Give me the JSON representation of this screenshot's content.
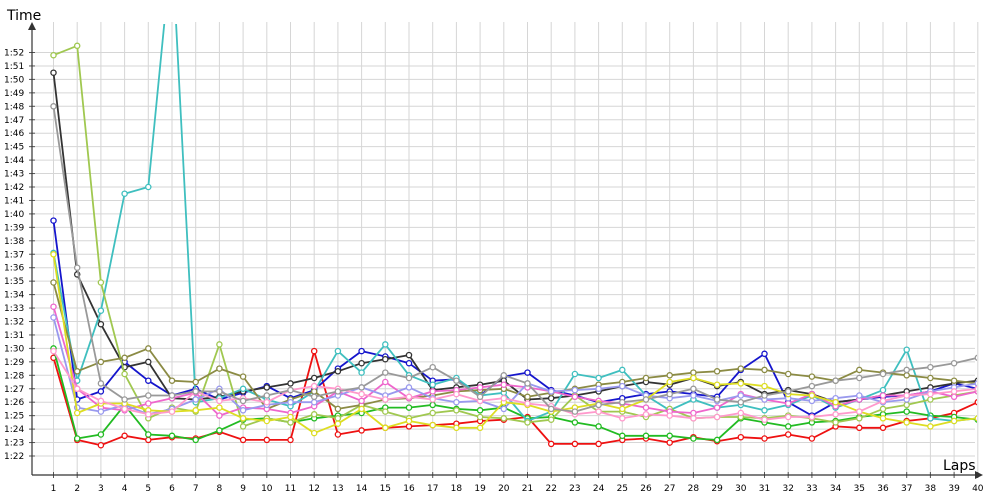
{
  "chart_data": {
    "type": "line",
    "xlabel": "Laps",
    "ylabel": "Time",
    "x": [
      1,
      2,
      3,
      4,
      5,
      6,
      7,
      8,
      9,
      10,
      11,
      12,
      13,
      14,
      15,
      16,
      17,
      18,
      19,
      20,
      21,
      22,
      23,
      24,
      25,
      26,
      27,
      28,
      29,
      30,
      31,
      32,
      33,
      34,
      35,
      36,
      37,
      38,
      39,
      40
    ],
    "x_tick_labels": [
      "1",
      "2",
      "3",
      "4",
      "5",
      "6",
      "7",
      "8",
      "9",
      "10",
      "11",
      "12",
      "13",
      "14",
      "15",
      "16",
      "17",
      "18",
      "19",
      "20",
      "21",
      "22",
      "23",
      "24",
      "25",
      "26",
      "27",
      "28",
      "29",
      "30",
      "31",
      "32",
      "33",
      "34",
      "35",
      "36",
      "37",
      "38",
      "39",
      "40"
    ],
    "y_tick_labels": [
      "1:22",
      "1:23",
      "1:24",
      "1:25",
      "1:26",
      "1:27",
      "1:28",
      "1:29",
      "1:30",
      "1:31",
      "1:32",
      "1:33",
      "1:34",
      "1:35",
      "1:36",
      "1:37",
      "1:38",
      "1:39",
      "1:40",
      "1:41",
      "1:42",
      "1:43",
      "1:44",
      "1:45",
      "1:46",
      "1:47",
      "1:48",
      "1:49",
      "1:50",
      "1:51",
      "1:52"
    ],
    "y_unit": "seconds",
    "ylim": [
      81.5,
      112.8
    ],
    "xlim": [
      0.2,
      40.4
    ],
    "grid": true,
    "series": [
      {
        "color": "#ee1111",
        "values": [
          89.3,
          83.2,
          82.8,
          83.5,
          83.2,
          83.4,
          83.3,
          83.8,
          83.2,
          83.2,
          83.2,
          89.8,
          83.6,
          83.9,
          84.1,
          84.2,
          84.3,
          84.4,
          84.6,
          84.7,
          84.9,
          82.9,
          82.9,
          82.9,
          83.2,
          83.3,
          83.0,
          83.4,
          83.1,
          83.4,
          83.3,
          83.6,
          83.3,
          84.2,
          84.1,
          84.1,
          84.6,
          84.8,
          85.2,
          86.0
        ]
      },
      {
        "color": "#22bb22",
        "values": [
          90.0,
          83.3,
          83.6,
          85.8,
          83.6,
          83.5,
          83.2,
          83.9,
          84.7,
          84.8,
          84.5,
          84.8,
          85.0,
          85.2,
          85.6,
          85.6,
          85.8,
          85.5,
          85.4,
          85.6,
          84.8,
          84.9,
          84.5,
          84.2,
          83.5,
          83.5,
          83.5,
          83.3,
          83.2,
          84.8,
          84.5,
          84.2,
          84.5,
          84.6,
          84.9,
          85.1,
          85.3,
          85.0,
          84.9,
          84.7
        ]
      },
      {
        "color": "#1515cc",
        "values": [
          99.5,
          86.2,
          86.8,
          89.0,
          87.6,
          86.5,
          87.0,
          86.2,
          86.7,
          87.2,
          86.3,
          86.9,
          88.5,
          89.8,
          89.4,
          88.9,
          87.6,
          87.7,
          86.5,
          87.9,
          88.2,
          86.9,
          86.5,
          86.0,
          86.3,
          86.6,
          86.8,
          86.6,
          86.4,
          88.4,
          89.6,
          86.0,
          85.0,
          86.0,
          86.2,
          86.4,
          86.5,
          86.8,
          87.4,
          87.0
        ]
      },
      {
        "color": "#333333",
        "values": [
          110.5,
          95.5,
          91.8,
          88.6,
          89.0,
          86.3,
          86.2,
          86.4,
          86.8,
          87.1,
          87.4,
          87.8,
          88.3,
          88.9,
          89.2,
          89.5,
          86.9,
          87.1,
          87.3,
          87.6,
          86.2,
          86.3,
          86.5,
          86.8,
          87.2,
          87.5,
          87.3,
          87.8,
          87.2,
          87.5,
          86.6,
          86.9,
          86.6,
          86.0,
          86.2,
          86.5,
          86.8,
          87.1,
          87.4,
          87.6
        ]
      },
      {
        "color": "#3fbfbf",
        "values": [
          97.1,
          87.6,
          92.8,
          101.5,
          102.0,
          120.0,
          86.0,
          86.3,
          87.0,
          86.2,
          85.7,
          86.8,
          89.8,
          88.2,
          90.3,
          88.0,
          87.3,
          87.8,
          86.5,
          86.7,
          84.6,
          85.3,
          88.1,
          87.8,
          88.4,
          86.5,
          85.4,
          86.2,
          85.6,
          85.8,
          85.4,
          85.8,
          86.5,
          85.6,
          86.2,
          86.9,
          89.9,
          84.8,
          84.6,
          84.8
        ]
      },
      {
        "color": "#a0c850",
        "values": [
          111.8,
          112.5,
          94.9,
          88.1,
          84.8,
          85.6,
          85.3,
          90.3,
          84.2,
          84.8,
          84.5,
          85.1,
          84.8,
          85.8,
          85.3,
          84.8,
          85.2,
          85.4,
          84.9,
          84.8,
          84.5,
          84.7,
          86.5,
          85.3,
          85.3,
          84.9,
          85.5,
          84.8,
          84.9,
          84.9,
          84.8,
          85.0,
          84.8,
          84.5,
          84.8,
          85.5,
          85.8,
          86.2,
          86.5,
          86.8
        ]
      },
      {
        "color": "#8b8b44",
        "values": [
          94.9,
          88.3,
          89.0,
          89.3,
          90.0,
          87.6,
          87.5,
          88.5,
          87.9,
          85.5,
          86.2,
          86.8,
          85.5,
          85.8,
          86.2,
          86.3,
          86.5,
          86.8,
          86.9,
          87.0,
          86.4,
          86.7,
          87.0,
          87.3,
          87.5,
          87.8,
          88.0,
          88.2,
          88.3,
          88.5,
          88.4,
          88.1,
          87.9,
          87.6,
          88.4,
          88.2,
          88.0,
          87.8,
          87.6,
          87.4
        ]
      },
      {
        "color": "#ee66cc",
        "values": [
          93.1,
          87.0,
          85.6,
          85.4,
          85.9,
          86.3,
          86.7,
          85.0,
          85.6,
          85.5,
          85.2,
          85.7,
          86.8,
          86.1,
          87.5,
          86.3,
          86.8,
          86.9,
          87.1,
          87.3,
          87.1,
          86.8,
          86.4,
          86.1,
          85.9,
          85.6,
          85.3,
          85.2,
          85.6,
          86.6,
          86.2,
          85.9,
          86.6,
          85.7,
          86.2,
          86.5,
          86.5,
          86.8,
          86.4,
          86.8
        ]
      },
      {
        "color": "#9999ee",
        "values": [
          92.3,
          85.6,
          85.3,
          85.8,
          85.1,
          85.5,
          86.2,
          87.0,
          85.4,
          85.8,
          86.0,
          86.0,
          86.5,
          87.1,
          86.5,
          87.1,
          86.3,
          86.0,
          86.1,
          85.5,
          87.4,
          86.8,
          86.9,
          87.0,
          87.2,
          86.5,
          86.3,
          86.5,
          86.1,
          86.5,
          86.2,
          86.3,
          86.1,
          86.3,
          86.5,
          86.0,
          86.2,
          86.8,
          87.1,
          87.4
        ]
      },
      {
        "color": "#dddd22",
        "values": [
          97.0,
          85.2,
          85.9,
          85.9,
          85.4,
          85.3,
          85.4,
          85.6,
          84.8,
          84.6,
          84.9,
          83.7,
          84.4,
          85.5,
          84.1,
          84.6,
          84.3,
          84.1,
          84.1,
          86.0,
          85.8,
          85.3,
          85.6,
          85.9,
          85.5,
          86.2,
          87.5,
          87.8,
          87.3,
          87.4,
          87.2,
          86.6,
          86.5,
          86.0,
          85.3,
          84.8,
          84.5,
          84.2,
          84.6,
          84.8
        ]
      },
      {
        "color": "#ff99cc",
        "values": [
          89.8,
          87.0,
          86.1,
          85.5,
          85.1,
          85.3,
          86.8,
          86.1,
          86.3,
          86.0,
          86.9,
          87.2,
          87.0,
          86.6,
          86.2,
          86.4,
          86.2,
          86.6,
          86.1,
          86.3,
          85.9,
          85.7,
          85.1,
          85.3,
          84.8,
          85.1,
          85.0,
          84.8,
          84.9,
          85.2,
          84.7,
          84.9,
          84.9,
          85.1,
          85.3,
          86.1,
          86.5,
          86.6,
          86.8,
          87.0
        ]
      },
      {
        "color": "#999999",
        "values": [
          108.0,
          96.0,
          87.4,
          86.2,
          86.5,
          86.5,
          86.8,
          86.8,
          86.1,
          86.5,
          86.9,
          86.4,
          86.8,
          87.1,
          88.2,
          87.8,
          88.6,
          87.6,
          86.4,
          88.0,
          87.4,
          85.5,
          85.3,
          85.8,
          86.0,
          86.2,
          86.6,
          87.0,
          86.2,
          86.0,
          86.5,
          86.8,
          87.2,
          87.6,
          87.8,
          88.1,
          88.4,
          88.6,
          88.9,
          89.3
        ]
      }
    ]
  }
}
